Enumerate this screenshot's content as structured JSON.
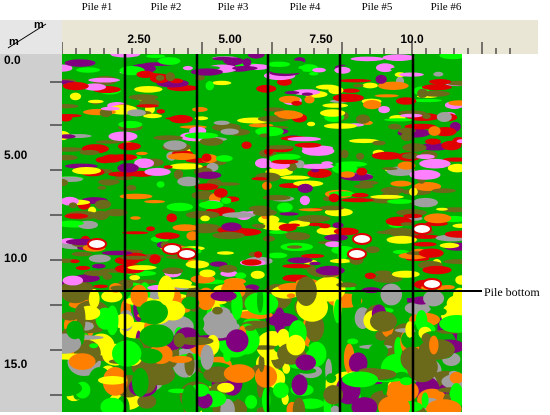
{
  "piles": [
    "Pile #1",
    "Pile #2",
    "Pile #3",
    "Pile #4",
    "Pile #5",
    "Pile #6"
  ],
  "axes": {
    "unit_top": "m",
    "unit_left": "m",
    "x_ticks": [
      "2.50",
      "5.00",
      "7.50",
      "10.0"
    ],
    "y_ticks": [
      "0.0",
      "5.00",
      "10.0",
      "15.0"
    ]
  },
  "annotation": {
    "pile_bottom": "Pile bottom"
  },
  "colors": {
    "palette": [
      "#00b000",
      "#6a6a1a",
      "#e00000",
      "#ff7f00",
      "#ffff00",
      "#00ff00",
      "#800080",
      "#ff80ff",
      "#a0a0a0",
      "#ffffff"
    ],
    "ruler": "#eae6d6",
    "gutter": "#cfcfcf"
  }
}
